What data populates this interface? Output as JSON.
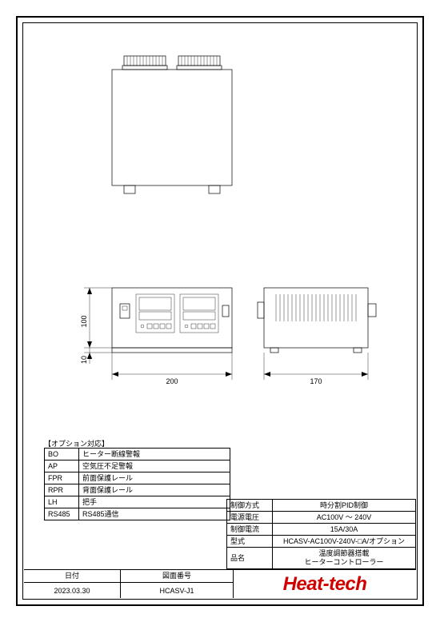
{
  "dimensions": {
    "front_height": "100",
    "front_offset": "10",
    "front_width": "200",
    "side_width": "170"
  },
  "options": {
    "caption": "【オプション対応】",
    "rows": [
      {
        "code": "BO",
        "desc": "ヒーター断線警報"
      },
      {
        "code": "AP",
        "desc": "空気圧不足警報"
      },
      {
        "code": "FPR",
        "desc": "前面保護レール"
      },
      {
        "code": "RPR",
        "desc": "背面保護レール"
      },
      {
        "code": "LH",
        "desc": "把手"
      },
      {
        "code": "RS485",
        "desc": "RS485通信"
      }
    ]
  },
  "spec": {
    "rows": [
      {
        "label": "制御方式",
        "value": "時分割PID制御"
      },
      {
        "label": "電源電圧",
        "value": "AC100V ～ 240V"
      },
      {
        "label": "制御電流",
        "value": "15A/30A"
      },
      {
        "label": "型式",
        "value": "HCASV-AC100V-240V-□A/オプション"
      },
      {
        "label": "品名",
        "value": "温度調節器搭載\nヒーターコントローラー"
      }
    ]
  },
  "titleblock": {
    "date_label": "日付",
    "date_value": "2023.03.30",
    "drawno_label": "図面番号",
    "drawno_value": "HCASV-J1",
    "logo_text": "Heat-tech"
  },
  "drawing_style": {
    "stroke_color": "#000000",
    "background": "#ffffff",
    "logo_color": "#d00000",
    "thin_width": 0.7,
    "hair_width": 0.4,
    "dim_fontsize": 9
  }
}
